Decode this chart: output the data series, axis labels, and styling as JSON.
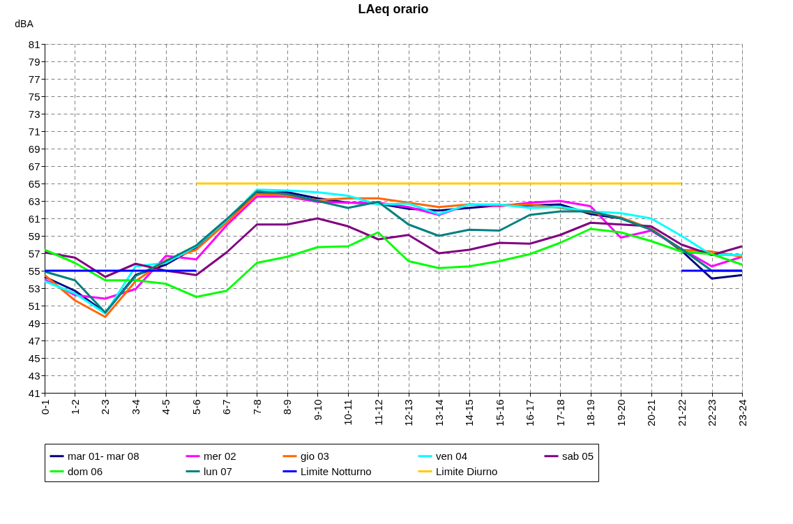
{
  "chart_data": {
    "type": "line",
    "title": "LAeq orario",
    "ylabel": "dBA",
    "categories": [
      "0-1",
      "1-2",
      "2-3",
      "3-4",
      "4-5",
      "5-6",
      "6-7",
      "7-8",
      "8-9",
      "9-10",
      "10-11",
      "11-12",
      "12-13",
      "13-14",
      "14-15",
      "15-16",
      "16-17",
      "17-18",
      "18-19",
      "19-20",
      "20-21",
      "21-22",
      "22-23",
      "23-24"
    ],
    "ylim": [
      41,
      81
    ],
    "yticks": [
      41,
      43,
      45,
      47,
      49,
      51,
      53,
      55,
      57,
      59,
      61,
      63,
      65,
      67,
      69,
      71,
      73,
      75,
      77,
      79,
      81
    ],
    "grid": true,
    "legend": "bottom",
    "marker": "none",
    "line_style": "solid",
    "series": [
      {
        "name": "mar 01- mar 08",
        "color": "#000080",
        "values": [
          54.3,
          52.7,
          50.2,
          54.5,
          55.7,
          57.7,
          60.8,
          63.9,
          64.0,
          63.3,
          62.8,
          62.7,
          62.1,
          61.9,
          62.2,
          62.5,
          62.5,
          62.6,
          61.5,
          61.0,
          59.8,
          57.3,
          54.1,
          54.5
        ]
      },
      {
        "name": "mer 02",
        "color": "#ff00ff",
        "values": [
          54.0,
          52.2,
          51.8,
          52.9,
          56.7,
          56.3,
          60.2,
          63.5,
          63.5,
          62.9,
          62.8,
          62.8,
          62.3,
          61.4,
          62.6,
          62.4,
          62.8,
          63.0,
          62.4,
          58.8,
          59.6,
          57.5,
          55.5,
          56.6
        ]
      },
      {
        "name": "gio 03",
        "color": "#ff6600",
        "values": [
          54.5,
          51.6,
          49.7,
          53.8,
          56.2,
          57.4,
          60.5,
          63.8,
          63.6,
          63.1,
          63.3,
          63.3,
          62.8,
          62.3,
          62.6,
          62.5,
          62.6,
          62.2,
          61.7,
          61.1,
          59.8,
          57.4,
          57.2,
          56.6
        ]
      },
      {
        "name": "ven 04",
        "color": "#00ffff",
        "values": [
          53.8,
          52.4,
          50.1,
          55.5,
          55.9,
          57.8,
          60.8,
          64.3,
          64.2,
          64.0,
          63.6,
          62.6,
          62.7,
          61.5,
          62.6,
          62.6,
          62.2,
          62.3,
          61.8,
          61.6,
          61.0,
          59.0,
          56.8,
          56.8
        ]
      },
      {
        "name": "sab 05",
        "color": "#800080",
        "values": [
          57.1,
          56.5,
          54.3,
          55.8,
          55.0,
          54.5,
          57.1,
          60.3,
          60.3,
          61.0,
          60.1,
          58.6,
          59.1,
          57.0,
          57.4,
          58.2,
          58.1,
          59.1,
          60.5,
          60.3,
          60.1,
          58.0,
          56.8,
          57.8
        ]
      },
      {
        "name": "dom 06",
        "color": "#00ff00",
        "values": [
          57.4,
          55.9,
          53.9,
          53.9,
          53.5,
          52.0,
          52.7,
          55.9,
          56.6,
          57.7,
          57.8,
          59.4,
          56.1,
          55.3,
          55.5,
          56.1,
          56.9,
          58.2,
          59.8,
          59.4,
          58.4,
          57.2,
          56.9,
          55.7
        ]
      },
      {
        "name": "lun 07",
        "color": "#008080",
        "values": [
          54.9,
          53.9,
          50.2,
          54.4,
          56.1,
          57.9,
          60.9,
          64.1,
          63.8,
          63.0,
          62.2,
          62.9,
          60.3,
          59.0,
          59.7,
          59.6,
          61.4,
          61.8,
          61.8,
          61.0,
          59.7,
          57.5,
          55.0,
          55.0
        ]
      },
      {
        "name": "Limite Notturno",
        "color": "#0000ff",
        "values": [
          55,
          55,
          55,
          55,
          55,
          55,
          null,
          null,
          null,
          null,
          null,
          null,
          null,
          null,
          null,
          null,
          null,
          null,
          null,
          null,
          null,
          55,
          55,
          55
        ]
      },
      {
        "name": "Limite Diurno",
        "color": "#ffcc00",
        "values": [
          null,
          null,
          null,
          null,
          null,
          65,
          65,
          65,
          65,
          65,
          65,
          65,
          65,
          65,
          65,
          65,
          65,
          65,
          65,
          65,
          65,
          65,
          null,
          null
        ]
      }
    ]
  }
}
